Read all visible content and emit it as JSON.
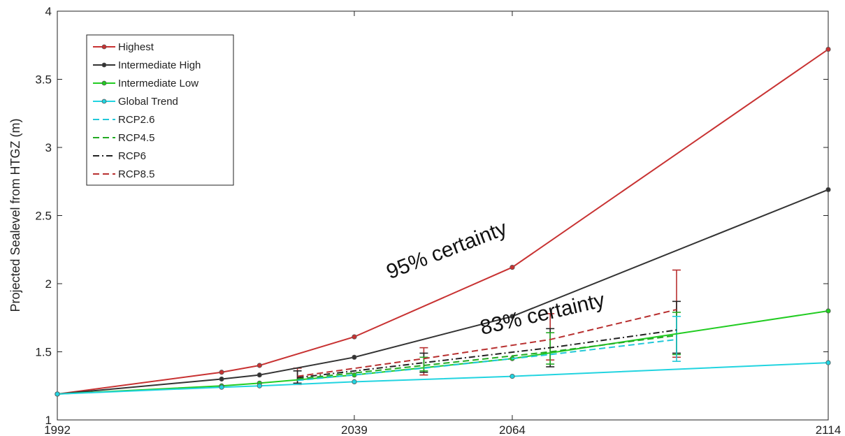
{
  "chart_data": {
    "type": "line",
    "title": "",
    "xlabel": "",
    "ylabel": "Projected Sealevel from HTGZ  (m)",
    "xlim": [
      1992,
      2114
    ],
    "ylim": [
      1,
      4
    ],
    "x_ticks": [
      1992,
      2039,
      2064,
      2114
    ],
    "y_ticks": [
      1,
      1.5,
      2,
      2.5,
      3,
      3.5,
      4
    ],
    "y_tick_labels": [
      "1",
      "1.5",
      "2",
      "2.5",
      "3",
      "3.5",
      "4"
    ],
    "grid": false,
    "legend_position": "top-left",
    "series": [
      {
        "name": "Highest",
        "color": "#c83232",
        "style": "solid",
        "marker": true,
        "x": [
          1992,
          2018,
          2024,
          2039,
          2064,
          2114
        ],
        "y": [
          1.19,
          1.35,
          1.4,
          1.61,
          2.12,
          3.72
        ]
      },
      {
        "name": "Intermediate High",
        "color": "#333333",
        "style": "solid",
        "marker": true,
        "x": [
          1992,
          2018,
          2024,
          2039,
          2064,
          2114
        ],
        "y": [
          1.19,
          1.3,
          1.33,
          1.46,
          1.76,
          2.69
        ]
      },
      {
        "name": "Intermediate Low",
        "color": "#22cc22",
        "style": "solid",
        "marker": true,
        "x": [
          1992,
          2018,
          2024,
          2039,
          2064,
          2114
        ],
        "y": [
          1.19,
          1.25,
          1.27,
          1.33,
          1.45,
          1.8
        ]
      },
      {
        "name": "Global Trend",
        "color": "#22d4e0",
        "style": "solid",
        "marker": true,
        "x": [
          1992,
          2018,
          2024,
          2039,
          2064,
          2114
        ],
        "y": [
          1.19,
          1.24,
          1.25,
          1.28,
          1.32,
          1.42
        ]
      },
      {
        "name": "RCP2.6",
        "color": "#22c8d8",
        "style": "dashed",
        "marker": false,
        "x": [
          2030,
          2050,
          2070,
          2090
        ],
        "y": [
          1.29,
          1.38,
          1.48,
          1.59
        ]
      },
      {
        "name": "RCP4.5",
        "color": "#22aa22",
        "style": "dashed",
        "marker": false,
        "x": [
          2030,
          2050,
          2070,
          2090
        ],
        "y": [
          1.3,
          1.4,
          1.5,
          1.62
        ]
      },
      {
        "name": "RCP6",
        "color": "#222222",
        "style": "dashdot",
        "marker": false,
        "x": [
          2030,
          2050,
          2070,
          2090
        ],
        "y": [
          1.31,
          1.42,
          1.53,
          1.66
        ]
      },
      {
        "name": "RCP8.5",
        "color": "#b83030",
        "style": "dashed",
        "marker": false,
        "x": [
          2030,
          2050,
          2070,
          2090
        ],
        "y": [
          1.32,
          1.45,
          1.59,
          1.81
        ]
      }
    ],
    "error_bars": [
      {
        "x": 2030,
        "color": "#b83030",
        "low": 1.26,
        "high": 1.38
      },
      {
        "x": 2030,
        "color": "#222222",
        "low": 1.27,
        "high": 1.36
      },
      {
        "x": 2050,
        "color": "#b83030",
        "low": 1.33,
        "high": 1.53
      },
      {
        "x": 2050,
        "color": "#222222",
        "low": 1.35,
        "high": 1.49
      },
      {
        "x": 2050,
        "color": "#22aa22",
        "low": 1.36,
        "high": 1.46
      },
      {
        "x": 2070,
        "color": "#b83030",
        "low": 1.44,
        "high": 1.78
      },
      {
        "x": 2070,
        "color": "#222222",
        "low": 1.39,
        "high": 1.67
      },
      {
        "x": 2070,
        "color": "#22aa22",
        "low": 1.41,
        "high": 1.64
      },
      {
        "x": 2090,
        "color": "#b83030",
        "low": 1.46,
        "high": 2.1
      },
      {
        "x": 2090,
        "color": "#222222",
        "low": 1.49,
        "high": 1.87
      },
      {
        "x": 2090,
        "color": "#22aa22",
        "low": 1.48,
        "high": 1.79
      },
      {
        "x": 2090,
        "color": "#22c8d8",
        "low": 1.43,
        "high": 1.76
      }
    ],
    "annotations": [
      {
        "text": "95% certainty",
        "x": 2054,
        "y": 2.2,
        "angle": -21
      },
      {
        "text": "83% certainty",
        "x": 2069,
        "y": 1.73,
        "angle": -13
      }
    ]
  }
}
